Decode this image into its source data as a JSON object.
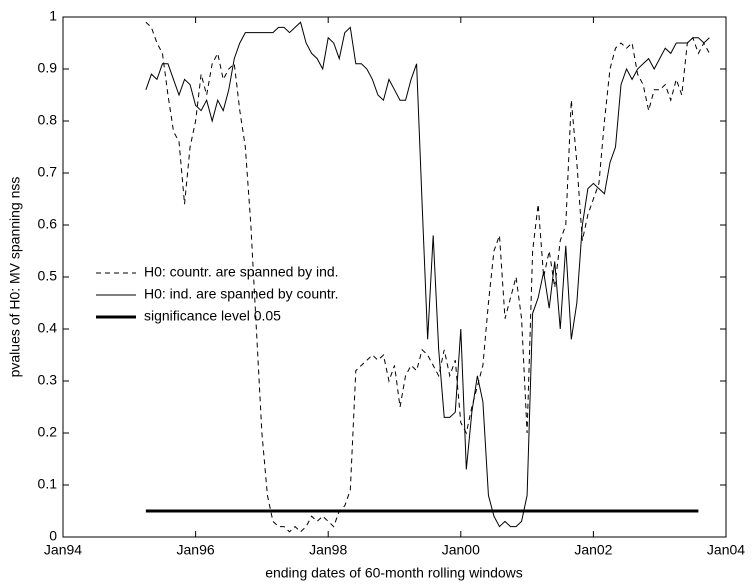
{
  "chart_data": {
    "type": "line",
    "x_label": "ending dates of 60-month rolling windows",
    "y_label": "pvalues of H0: MV spanning nss",
    "x": [
      "1995-04",
      "1995-05",
      "1995-06",
      "1995-07",
      "1995-08",
      "1995-09",
      "1995-10",
      "1995-11",
      "1995-12",
      "1996-01",
      "1996-02",
      "1996-03",
      "1996-04",
      "1996-05",
      "1996-06",
      "1996-07",
      "1996-08",
      "1996-09",
      "1996-10",
      "1996-11",
      "1996-12",
      "1997-01",
      "1997-02",
      "1997-03",
      "1997-04",
      "1997-05",
      "1997-06",
      "1997-07",
      "1997-08",
      "1997-09",
      "1997-10",
      "1997-11",
      "1997-12",
      "1998-01",
      "1998-02",
      "1998-03",
      "1998-04",
      "1998-05",
      "1998-06",
      "1998-07",
      "1998-08",
      "1998-09",
      "1998-10",
      "1998-11",
      "1998-12",
      "1999-01",
      "1999-02",
      "1999-03",
      "1999-04",
      "1999-05",
      "1999-06",
      "1999-07",
      "1999-08",
      "1999-09",
      "1999-10",
      "1999-11",
      "1999-12",
      "2000-01",
      "2000-02",
      "2000-03",
      "2000-04",
      "2000-05",
      "2000-06",
      "2000-07",
      "2000-08",
      "2000-09",
      "2000-10",
      "2000-11",
      "2000-12",
      "2001-01",
      "2001-02",
      "2001-03",
      "2001-04",
      "2001-05",
      "2001-06",
      "2001-07",
      "2001-08",
      "2001-09",
      "2001-10",
      "2001-11",
      "2001-12",
      "2002-01",
      "2002-02",
      "2002-03",
      "2002-04",
      "2002-05",
      "2002-06",
      "2002-07",
      "2002-08",
      "2002-09",
      "2002-10",
      "2002-11",
      "2002-12",
      "2003-01",
      "2003-02",
      "2003-03",
      "2003-04",
      "2003-05",
      "2003-06",
      "2003-07",
      "2003-08",
      "2003-09",
      "2003-10"
    ],
    "series": [
      {
        "name": "H0: countr. are spanned by ind.",
        "color": "#000000",
        "dash": true,
        "width": 1,
        "values": [
          0.99,
          0.98,
          0.95,
          0.93,
          0.85,
          0.78,
          0.76,
          0.64,
          0.75,
          0.8,
          0.89,
          0.85,
          0.91,
          0.93,
          0.88,
          0.9,
          0.91,
          0.82,
          0.75,
          0.6,
          0.4,
          0.2,
          0.08,
          0.03,
          0.02,
          0.02,
          0.01,
          0.02,
          0.01,
          0.02,
          0.04,
          0.03,
          0.04,
          0.03,
          0.02,
          0.05,
          0.06,
          0.09,
          0.32,
          0.33,
          0.34,
          0.35,
          0.34,
          0.35,
          0.3,
          0.33,
          0.25,
          0.31,
          0.33,
          0.32,
          0.36,
          0.35,
          0.33,
          0.31,
          0.36,
          0.31,
          0.34,
          0.22,
          0.2,
          0.25,
          0.29,
          0.33,
          0.45,
          0.55,
          0.58,
          0.42,
          0.46,
          0.5,
          0.42,
          0.2,
          0.55,
          0.64,
          0.5,
          0.55,
          0.48,
          0.57,
          0.6,
          0.84,
          0.72,
          0.57,
          0.62,
          0.65,
          0.68,
          0.8,
          0.9,
          0.94,
          0.95,
          0.94,
          0.95,
          0.89,
          0.87,
          0.82,
          0.86,
          0.86,
          0.87,
          0.84,
          0.88,
          0.85,
          0.95,
          0.96,
          0.93,
          0.95,
          0.93
        ]
      },
      {
        "name": "H0: ind. are spanned by countr.",
        "color": "#000000",
        "dash": false,
        "width": 1,
        "values": [
          0.86,
          0.89,
          0.88,
          0.91,
          0.91,
          0.88,
          0.85,
          0.88,
          0.87,
          0.83,
          0.82,
          0.84,
          0.8,
          0.84,
          0.82,
          0.86,
          0.92,
          0.95,
          0.97,
          0.97,
          0.97,
          0.97,
          0.97,
          0.97,
          0.98,
          0.98,
          0.97,
          0.98,
          0.99,
          0.95,
          0.93,
          0.92,
          0.9,
          0.96,
          0.95,
          0.92,
          0.97,
          0.98,
          0.91,
          0.91,
          0.9,
          0.88,
          0.85,
          0.84,
          0.88,
          0.86,
          0.84,
          0.84,
          0.88,
          0.91,
          0.64,
          0.38,
          0.58,
          0.36,
          0.23,
          0.23,
          0.24,
          0.4,
          0.13,
          0.24,
          0.31,
          0.26,
          0.08,
          0.04,
          0.02,
          0.03,
          0.02,
          0.02,
          0.03,
          0.08,
          0.43,
          0.46,
          0.51,
          0.44,
          0.53,
          0.4,
          0.56,
          0.38,
          0.45,
          0.6,
          0.67,
          0.68,
          0.67,
          0.66,
          0.72,
          0.75,
          0.87,
          0.9,
          0.88,
          0.9,
          0.91,
          0.92,
          0.9,
          0.92,
          0.94,
          0.93,
          0.95,
          0.95,
          0.95,
          0.96,
          0.96,
          0.95,
          0.96
        ]
      },
      {
        "name": "significance level 0.05",
        "color": "#000000",
        "dash": false,
        "width": 3,
        "x": [
          "1995-04",
          "2003-08"
        ],
        "values": [
          0.05,
          0.05
        ]
      }
    ],
    "xlim": [
      "1994-01",
      "2004-01"
    ],
    "xticks": [
      {
        "value": "1994-01",
        "label": "Jan94"
      },
      {
        "value": "1996-01",
        "label": "Jan96"
      },
      {
        "value": "1998-01",
        "label": "Jan98"
      },
      {
        "value": "2000-01",
        "label": "Jan00"
      },
      {
        "value": "2002-01",
        "label": "Jan02"
      },
      {
        "value": "2004-01",
        "label": "Jan04"
      }
    ],
    "ylim": [
      0,
      1
    ],
    "yticks": [
      0,
      0.1,
      0.2,
      0.3,
      0.4,
      0.5,
      0.6,
      0.7,
      0.8,
      0.9,
      1
    ],
    "legend": "left"
  }
}
